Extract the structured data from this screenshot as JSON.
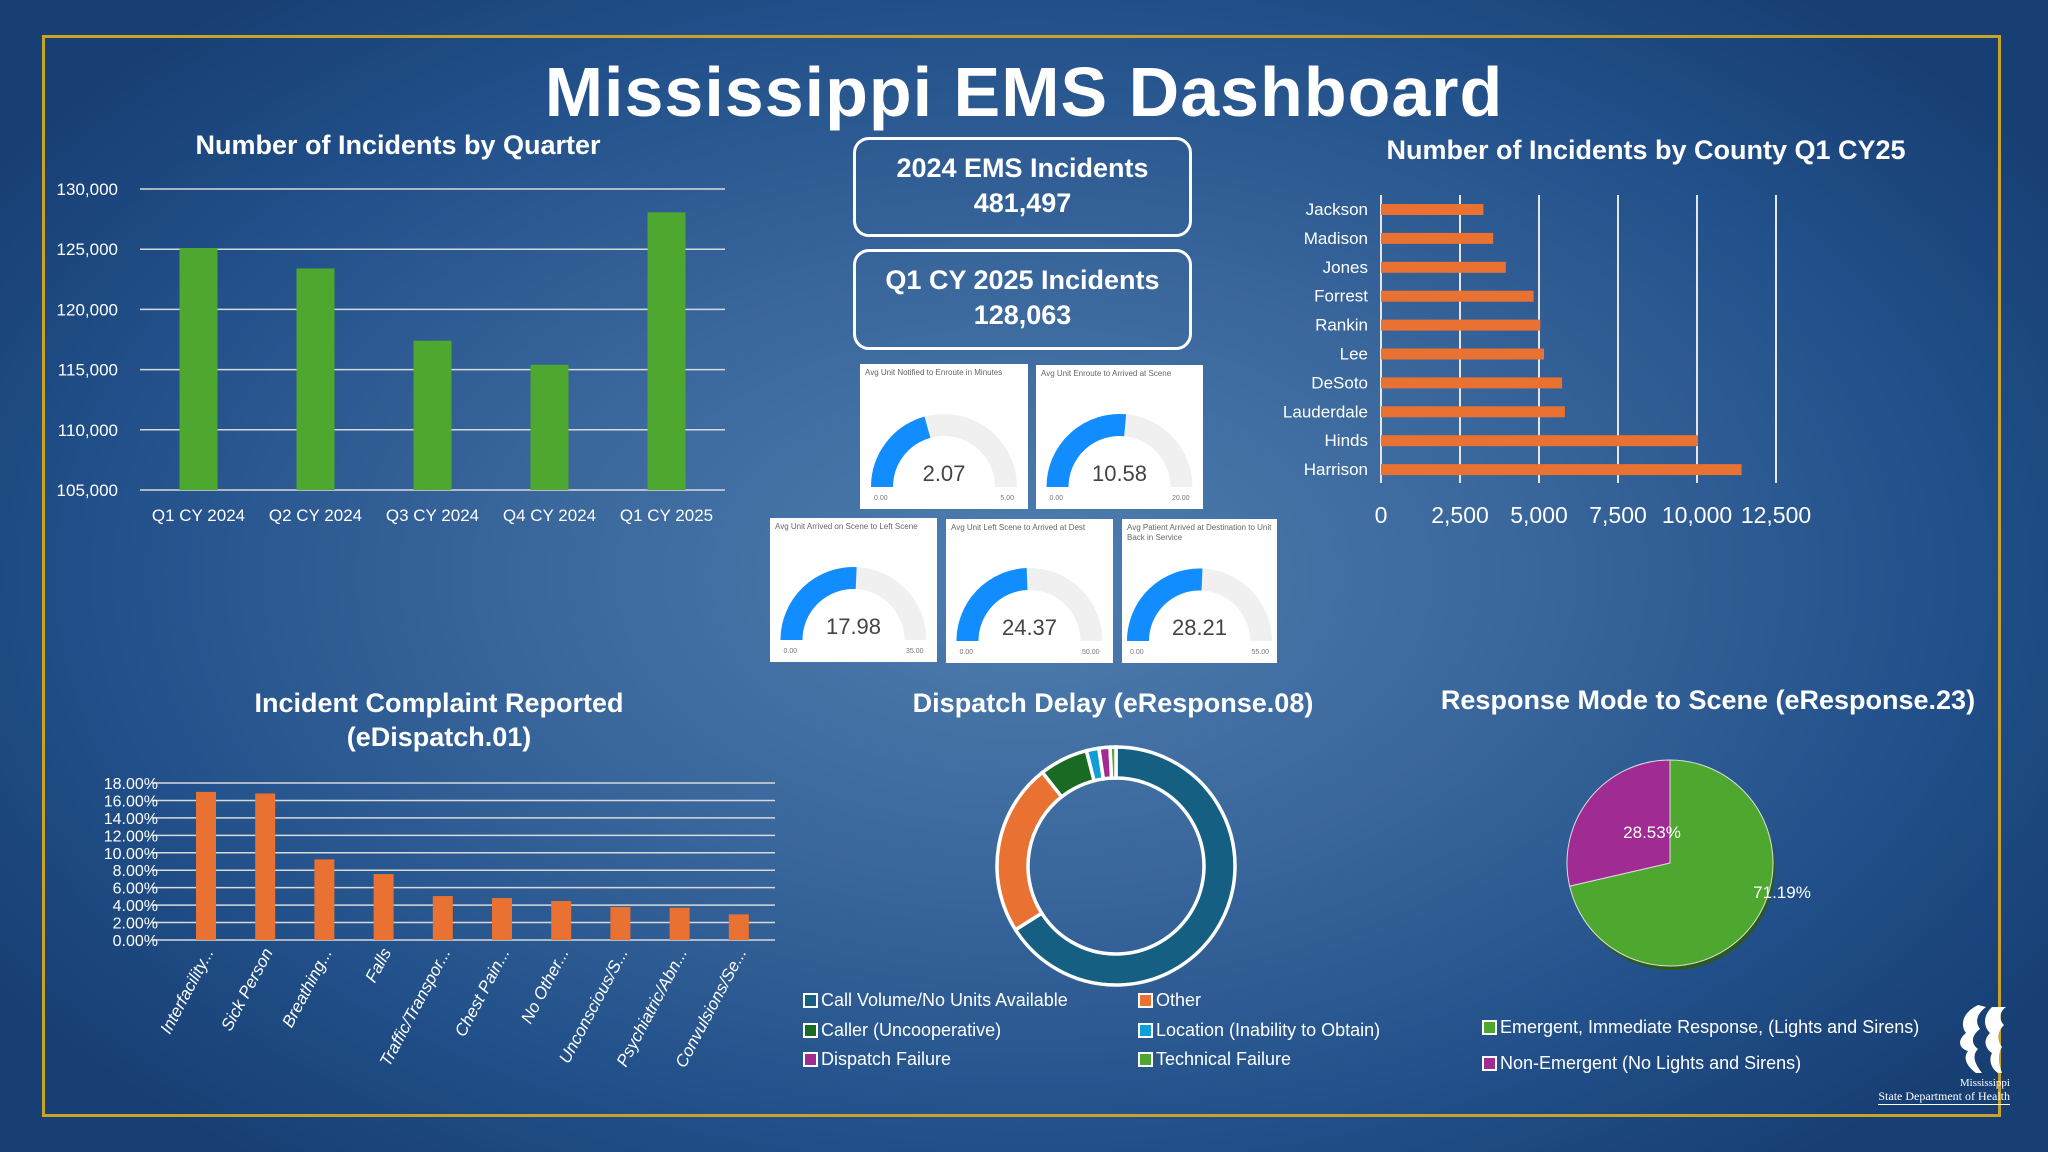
{
  "title": "Mississippi EMS Dashboard",
  "kpis": [
    {
      "label": "2024 EMS Incidents",
      "value": "481,497"
    },
    {
      "label": "Q1 CY 2025 Incidents",
      "value": "128,063"
    }
  ],
  "gauges": [
    {
      "title": "Avg Unit Notified to Enroute in Minutes",
      "value": 2.07,
      "value_text": "2.07",
      "min": "0.00",
      "max": "5.00",
      "max_value": 5
    },
    {
      "title": "Avg Unit Enroute to Arrived at Scene",
      "value": 10.58,
      "value_text": "10.58",
      "min": "0.00",
      "max": "20.00",
      "max_value": 20
    },
    {
      "title": "Avg Unit Arrived on Scene to Left Scene",
      "value": 17.98,
      "value_text": "17.98",
      "min": "0.00",
      "max": "35.00",
      "max_value": 35
    },
    {
      "title": "Avg Unit Left Scene to Arrived at Dest",
      "value": 24.37,
      "value_text": "24.37",
      "min": "0.00",
      "max": "50.00",
      "max_value": 50
    },
    {
      "title": "Avg Patient Arrived at Destination to Unit Back in Service",
      "value": 28.21,
      "value_text": "28.21",
      "min": "0.00",
      "max": "55.00",
      "max_value": 55
    }
  ],
  "colors": {
    "gauge_fill": "#118dff",
    "gauge_track": "#f0f0f0",
    "green": "#4ea72e",
    "orange": "#e97132",
    "gold": "#c9a227"
  },
  "logo": {
    "line1": "Mississippi",
    "line2": "State Department of Health"
  },
  "chart_data": [
    {
      "type": "bar",
      "title": "Number of Incidents by Quarter",
      "categories": [
        "Q1 CY 2024",
        "Q2 CY 2024",
        "Q3 CY 2024",
        "Q4 CY 2024",
        "Q1 CY 2025"
      ],
      "values": [
        125100,
        123400,
        117400,
        115400,
        128063
      ],
      "ylim": [
        105000,
        130000
      ],
      "yticks": [
        "105,000",
        "110,000",
        "115,000",
        "120,000",
        "125,000",
        "130,000"
      ],
      "color": "#4ea72e",
      "grid": true
    },
    {
      "type": "bar",
      "orientation": "horizontal",
      "title": "Number of Incidents by County Q1 CY25",
      "categories": [
        "Jackson",
        "Madison",
        "Jones",
        "Forrest",
        "Rankin",
        "Lee",
        "DeSoto",
        "Lauderdale",
        "Hinds",
        "Harrison"
      ],
      "values": [
        3240,
        3550,
        3950,
        4830,
        5040,
        5160,
        5730,
        5820,
        10030,
        11410
      ],
      "xlim": [
        0,
        12500
      ],
      "xticks": [
        "0",
        "2,500",
        "5,000",
        "7,500",
        "10,000",
        "12,500"
      ],
      "color": "#e97132",
      "grid": true
    },
    {
      "type": "bar",
      "title": "Incident Complaint Reported (eDispatch.01)",
      "title_lines": [
        "Incident Complaint Reported",
        "(eDispatch.01)"
      ],
      "categories": [
        "Interfacility...",
        "Sick Person",
        "Breathing...",
        "Falls",
        "Traffic/Transpor...",
        "Chest Pain...",
        "No Other...",
        "Unconscious/S...",
        "Psychiatric/Abn...",
        "Convulsions/Se..."
      ],
      "values": [
        16.98,
        16.8,
        9.24,
        7.56,
        5.04,
        4.81,
        4.47,
        3.78,
        3.7,
        2.94
      ],
      "ylim": [
        0,
        18
      ],
      "yticks": [
        "0.00%",
        "2.00%",
        "4.00%",
        "6.00%",
        "8.00%",
        "10.00%",
        "12.00%",
        "14.00%",
        "16.00%",
        "18.00%"
      ],
      "color": "#e97132",
      "grid": true
    },
    {
      "type": "pie",
      "donut": true,
      "title": "Dispatch Delay (eResponse.08)",
      "labels": [
        "Call Volume/No Units Available",
        "Other",
        "Caller (Uncooperative)",
        "Location (Inability to Obtain)",
        "Dispatch Failure",
        "Technical Failure"
      ],
      "values": [
        66.0,
        23.4,
        6.6,
        1.7,
        1.5,
        0.8
      ],
      "colors": [
        "#156082",
        "#e97132",
        "#196b24",
        "#0f9ed5",
        "#a02b93",
        "#4ea72e"
      ],
      "legend": "bottom"
    },
    {
      "type": "pie",
      "title": "Response Mode to Scene (eResponse.23)",
      "labels": [
        "Emergent, Immediate Response, (Lights and Sirens)",
        "Non-Emergent (No Lights and Sirens)"
      ],
      "values": [
        71.19,
        28.53
      ],
      "value_labels": [
        "71.19%",
        "28.53%"
      ],
      "colors": [
        "#4ea72e",
        "#a02b93"
      ],
      "legend": "bottom"
    }
  ]
}
